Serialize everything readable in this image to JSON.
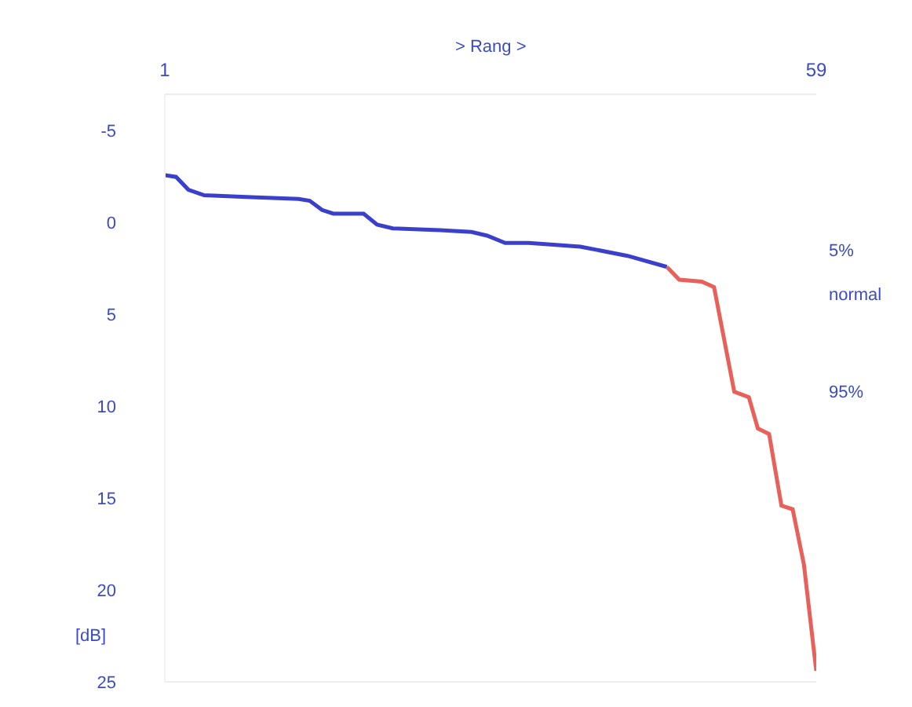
{
  "chart_data": {
    "type": "line",
    "xlabel": "> Rang >",
    "ylabel": "[dB]",
    "xlim": [
      1,
      59
    ],
    "xticks": [
      1,
      59
    ],
    "ylim": [
      25,
      -7
    ],
    "yticks": [
      -5,
      0,
      5,
      10,
      15,
      20,
      25
    ],
    "grid": false,
    "marker": "none",
    "line_style": "solid",
    "series": [
      {
        "color": "#3b40cc",
        "x": [
          1,
          2,
          3.1,
          4.5,
          8.7,
          12.9,
          13.9,
          15,
          16,
          18.7,
          19.9,
          21.3,
          25.5,
          28.3,
          29.7,
          31.3,
          33.4,
          38,
          42.2,
          45.7
        ],
        "values": [
          -2.6,
          -2.5,
          -1.8,
          -1.5,
          -1.4,
          -1.3,
          -1.2,
          -0.7,
          -0.5,
          -0.5,
          0.1,
          0.3,
          0.4,
          0.5,
          0.7,
          1.1,
          1.1,
          1.3,
          1.8,
          2.4
        ]
      },
      {
        "color": "#e8605a",
        "x": [
          45.7,
          46.8,
          48.8,
          49.9,
          51.7,
          53,
          53.8,
          54.8,
          55.9,
          56.9,
          57.9,
          59
        ],
        "values": [
          2.4,
          3.1,
          3.2,
          3.5,
          9.2,
          9.5,
          11.2,
          11.5,
          15.4,
          15.6,
          18.6,
          24.4
        ]
      }
    ],
    "annotations": [
      "5%",
      "normal",
      "95%"
    ]
  }
}
